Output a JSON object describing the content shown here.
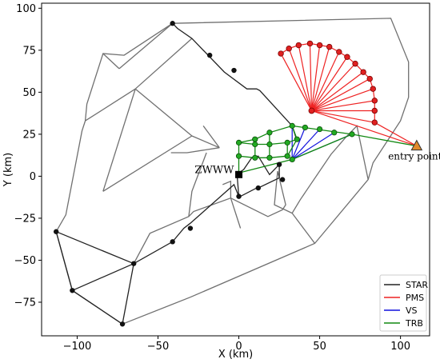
{
  "chart_data": {
    "type": "scatter",
    "xlabel": "X (km)",
    "ylabel": "Y (km)",
    "xlim": [
      -122,
      118
    ],
    "ylim": [
      -95,
      103
    ],
    "xticks": [
      -100,
      -50,
      0,
      50,
      100
    ],
    "yticks": [
      -75,
      -50,
      -25,
      0,
      25,
      50,
      75,
      100
    ],
    "grid": false,
    "legend_position": "lower-right",
    "colors": {
      "region": "#707070",
      "STAR": "#222222",
      "PMS": "#ee2222",
      "VS": "#1111dd",
      "TRB": "#118811",
      "entry_fill": "#e08a2c"
    },
    "legend": [
      "STAR",
      "PMS",
      "VS",
      "TRB"
    ],
    "annotations": [
      {
        "text": "ZWWW",
        "x": 0,
        "y": 1
      },
      {
        "text": "entry point",
        "x": 110,
        "y": 18
      }
    ],
    "regions": [
      [
        [
          -41,
          91
        ],
        [
          -71,
          72
        ],
        [
          -84,
          73
        ],
        [
          -94,
          43
        ],
        [
          -95,
          33
        ],
        [
          -97,
          27
        ],
        [
          -107,
          -23
        ],
        [
          -113,
          -33
        ],
        [
          -103,
          -68
        ],
        [
          -72,
          -88
        ],
        [
          -30,
          -72
        ],
        [
          47,
          -40
        ],
        [
          80,
          -2
        ],
        [
          83,
          8
        ],
        [
          100,
          33
        ],
        [
          105,
          47
        ],
        [
          105,
          68
        ],
        [
          94,
          94
        ],
        [
          -41,
          91
        ]
      ],
      [
        [
          -41,
          91
        ],
        [
          -74,
          64
        ]
      ],
      [
        [
          -29,
          82
        ],
        [
          -64,
          52
        ]
      ],
      [
        [
          -74,
          64
        ],
        [
          -84,
          73
        ]
      ],
      [
        [
          -64,
          52
        ],
        [
          -95,
          33
        ]
      ],
      [
        [
          -64,
          52
        ],
        [
          -29,
          24
        ]
      ],
      [
        [
          -64,
          52
        ],
        [
          -84,
          -9
        ]
      ],
      [
        [
          -29,
          24
        ],
        [
          -84,
          -9
        ]
      ],
      [
        [
          -29,
          24
        ],
        [
          -12,
          17
        ]
      ],
      [
        [
          -12,
          17
        ],
        [
          -32,
          14
        ],
        [
          -42,
          14
        ]
      ],
      [
        [
          -22,
          30
        ],
        [
          -12,
          17
        ]
      ],
      [
        [
          -20,
          14
        ],
        [
          -29,
          -9
        ],
        [
          -31,
          -24
        ],
        [
          -55,
          -34
        ],
        [
          -65,
          -52
        ]
      ],
      [
        [
          -31,
          -24
        ],
        [
          -28,
          -21
        ],
        [
          -5,
          -13
        ],
        [
          -5,
          -3
        ],
        [
          -10,
          -5
        ]
      ],
      [
        [
          -5,
          -13
        ],
        [
          1,
          -31
        ]
      ],
      [
        [
          -5,
          -13
        ],
        [
          18,
          -24
        ],
        [
          27,
          -20
        ],
        [
          29,
          -17
        ],
        [
          24,
          3
        ],
        [
          22,
          -17
        ],
        [
          33,
          -22
        ]
      ],
      [
        [
          33,
          -22
        ],
        [
          47,
          -40
        ]
      ],
      [
        [
          33,
          -22
        ],
        [
          38,
          -14
        ],
        [
          57,
          13
        ],
        [
          66,
          23
        ],
        [
          73,
          30
        ],
        [
          80,
          -2
        ]
      ]
    ],
    "STAR": [
      [
        [
          -41,
          91
        ],
        [
          -38,
          88
        ],
        [
          -29,
          82
        ],
        [
          -9,
          62
        ],
        [
          5,
          52
        ],
        [
          11,
          52
        ],
        [
          13,
          51
        ],
        [
          33,
          30
        ],
        [
          36,
          21
        ]
      ],
      [
        [
          -113,
          -33
        ],
        [
          -65,
          -52
        ],
        [
          -41,
          -39
        ],
        [
          -34,
          -31
        ],
        [
          -30,
          -28
        ],
        [
          -3,
          -5
        ],
        [
          0,
          -12
        ],
        [
          -1,
          0
        ],
        [
          0,
          2
        ],
        [
          3,
          4
        ],
        [
          8,
          11
        ],
        [
          12,
          12
        ],
        [
          19,
          1
        ],
        [
          25,
          7
        ],
        [
          25,
          -1
        ],
        [
          12,
          -7
        ],
        [
          11,
          -7
        ],
        [
          -1,
          -13
        ]
      ],
      [
        [
          -113,
          -33
        ],
        [
          -103,
          -68
        ],
        [
          -72,
          -88
        ],
        [
          -65,
          -52
        ],
        [
          -103,
          -68
        ]
      ]
    ],
    "STAR_nodes": [
      [
        -41,
        91
      ],
      [
        -18,
        72
      ],
      [
        -3,
        63
      ],
      [
        -113,
        -33
      ],
      [
        -65,
        -52
      ],
      [
        -103,
        -68
      ],
      [
        -72,
        -88
      ],
      [
        -41,
        -39
      ],
      [
        -30,
        -31
      ],
      [
        0,
        -12
      ],
      [
        12,
        -7
      ],
      [
        27,
        -2
      ],
      [
        25,
        7
      ]
    ],
    "PMS_hub": [
      45,
      39
    ],
    "PMS_entry": [
      110,
      18
    ],
    "PMS_arc": [
      [
        26,
        73
      ],
      [
        31,
        76
      ],
      [
        37,
        78
      ],
      [
        44,
        79
      ],
      [
        50,
        78
      ],
      [
        56,
        77
      ],
      [
        62,
        74
      ],
      [
        67,
        71
      ],
      [
        72,
        67
      ],
      [
        77,
        62
      ],
      [
        81,
        58
      ],
      [
        83,
        52
      ],
      [
        84,
        45
      ],
      [
        84,
        39
      ],
      [
        84,
        32
      ]
    ],
    "VS": [
      [
        [
          33,
          10
        ],
        [
          33,
          30
        ]
      ],
      [
        [
          33,
          10
        ],
        [
          41,
          29
        ]
      ],
      [
        [
          33,
          10
        ],
        [
          50,
          28
        ]
      ],
      [
        [
          33,
          10
        ],
        [
          59,
          26
        ]
      ],
      [
        [
          33,
          10
        ],
        [
          70,
          25
        ]
      ]
    ],
    "TRB": [
      [
        [
          0,
          2
        ],
        [
          33,
          10
        ],
        [
          70,
          25
        ],
        [
          110,
          18
        ]
      ],
      [
        [
          0,
          20
        ],
        [
          10,
          19
        ],
        [
          19,
          19
        ],
        [
          30,
          20
        ],
        [
          36,
          22
        ],
        [
          33,
          30
        ],
        [
          19,
          26
        ],
        [
          10,
          22
        ],
        [
          0,
          20
        ]
      ],
      [
        [
          0,
          3
        ],
        [
          0,
          12
        ],
        [
          10,
          11
        ],
        [
          19,
          11
        ],
        [
          30,
          12
        ],
        [
          36,
          22
        ]
      ],
      [
        [
          0,
          12
        ],
        [
          0,
          20
        ]
      ],
      [
        [
          10,
          11
        ],
        [
          10,
          22
        ]
      ],
      [
        [
          19,
          11
        ],
        [
          19,
          26
        ]
      ],
      [
        [
          30,
          12
        ],
        [
          30,
          20
        ]
      ],
      [
        [
          33,
          30
        ],
        [
          70,
          25
        ]
      ]
    ],
    "TRB_nodes": [
      [
        0,
        20
      ],
      [
        0,
        12
      ],
      [
        10,
        11
      ],
      [
        10,
        19
      ],
      [
        10,
        22
      ],
      [
        19,
        11
      ],
      [
        19,
        19
      ],
      [
        19,
        26
      ],
      [
        30,
        12
      ],
      [
        30,
        20
      ],
      [
        36,
        22
      ],
      [
        33,
        30
      ],
      [
        33,
        10
      ],
      [
        41,
        29
      ],
      [
        50,
        28
      ],
      [
        59,
        26
      ],
      [
        70,
        25
      ]
    ]
  }
}
